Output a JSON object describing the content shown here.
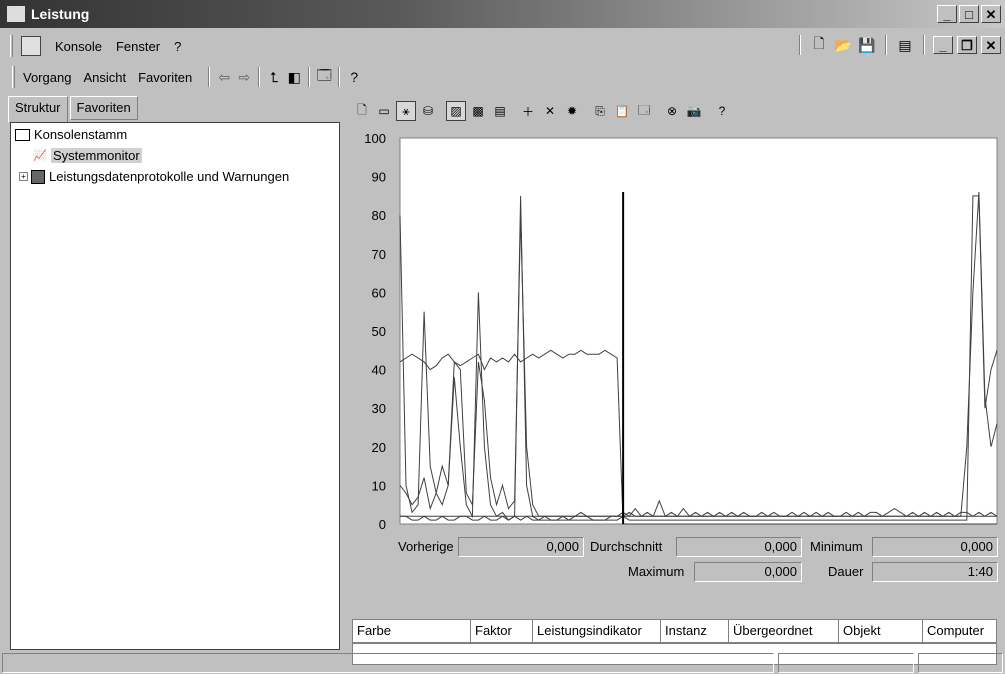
{
  "window": {
    "title": "Leistung",
    "controls": {
      "minimize": "_",
      "maximize": "□",
      "close": "✕"
    }
  },
  "menubar": {
    "items": [
      {
        "label": "Konsole"
      },
      {
        "label": "Fenster"
      },
      {
        "label": "?"
      }
    ],
    "child_controls": {
      "minimize": "_",
      "restore": "❐",
      "close": "✕"
    }
  },
  "actionbar": {
    "items": [
      {
        "label": "Vorgang"
      },
      {
        "label": "Ansicht"
      },
      {
        "label": "Favoriten"
      }
    ]
  },
  "tabs": [
    {
      "label": "Struktur",
      "active": true
    },
    {
      "label": "Favoriten",
      "active": false
    }
  ],
  "tree": {
    "root": "Konsolenstamm",
    "children": [
      {
        "label": "Systemmonitor",
        "selected": true
      },
      {
        "label": "Leistungsdatenprotokolle und Warnungen",
        "expander": "+"
      }
    ]
  },
  "chart_toolbar": {
    "icons": [
      "new-counter-set-icon",
      "clear-display-icon",
      "view-current-activity-icon",
      "view-log-data-icon",
      "view-graph-icon",
      "view-histogram-icon",
      "view-report-icon",
      "add-counter-icon",
      "delete-counter-icon",
      "highlight-icon",
      "copy-properties-icon",
      "paste-counter-list-icon",
      "properties-icon",
      "freeze-display-icon",
      "update-data-icon",
      "help-icon"
    ]
  },
  "chart_data": {
    "type": "line",
    "ylim": [
      0,
      100
    ],
    "yticks": [
      "100",
      "90",
      "80",
      "70",
      "60",
      "50",
      "40",
      "30",
      "20",
      "10",
      "0"
    ],
    "x_count": 100,
    "series": [
      {
        "values": [
          42,
          43,
          44,
          43,
          42,
          40,
          41,
          43,
          44,
          42,
          41,
          42,
          43,
          44,
          40,
          43,
          42,
          43,
          42,
          44,
          42,
          43,
          44,
          43,
          44,
          45,
          44,
          43,
          44,
          44,
          45,
          44,
          44,
          44,
          45,
          44,
          43,
          0,
          0,
          0,
          0,
          0,
          0,
          0,
          0,
          0,
          0,
          0,
          0,
          0,
          0,
          0,
          0,
          0,
          0,
          0,
          0,
          0,
          0,
          0,
          0,
          0,
          0,
          0,
          0,
          0,
          0,
          0,
          0,
          0,
          0,
          0,
          0,
          0,
          0,
          0,
          0,
          0,
          0,
          0,
          0,
          0,
          0,
          0,
          0,
          0,
          0,
          0,
          0,
          0,
          0,
          0,
          0,
          0,
          0,
          0,
          0,
          0,
          0,
          0
        ]
      },
      {
        "values": [
          80,
          10,
          3,
          5,
          55,
          15,
          8,
          5,
          10,
          38,
          20,
          5,
          2,
          60,
          20,
          5,
          2,
          3,
          1,
          2,
          85,
          10,
          2,
          1,
          1,
          1,
          1,
          1,
          1,
          1,
          1,
          1,
          1,
          1,
          1,
          1,
          1,
          2,
          1,
          1,
          1,
          1,
          1,
          1,
          1,
          1,
          1,
          1,
          1,
          1,
          1,
          1,
          1,
          1,
          1,
          1,
          1,
          1,
          1,
          1,
          1,
          1,
          1,
          1,
          1,
          1,
          1,
          1,
          1,
          1,
          1,
          1,
          1,
          1,
          1,
          1,
          1,
          1,
          1,
          1,
          1,
          1,
          1,
          1,
          1,
          1,
          1,
          1,
          1,
          1,
          1,
          1,
          1,
          1,
          1,
          85,
          85,
          30,
          40,
          45
        ]
      },
      {
        "values": [
          10,
          8,
          5,
          7,
          12,
          4,
          8,
          15,
          10,
          42,
          40,
          8,
          5,
          42,
          32,
          12,
          5,
          10,
          4,
          6,
          80,
          20,
          5,
          2,
          2,
          2,
          2,
          2,
          2,
          2,
          2,
          2,
          2,
          2,
          2,
          2,
          2,
          2,
          3,
          2,
          2,
          2,
          2,
          2,
          2,
          2,
          2,
          2,
          2,
          2,
          2,
          2,
          2,
          2,
          2,
          2,
          2,
          2,
          2,
          2,
          2,
          2,
          2,
          2,
          2,
          2,
          2,
          2,
          2,
          2,
          2,
          2,
          2,
          2,
          2,
          2,
          2,
          2,
          2,
          2,
          2,
          2,
          2,
          2,
          2,
          2,
          2,
          2,
          2,
          2,
          2,
          2,
          2,
          2,
          20,
          60,
          86,
          33,
          20,
          26
        ]
      },
      {
        "values": [
          2,
          2,
          1,
          1,
          2,
          1,
          1,
          2,
          1,
          1,
          2,
          2,
          1,
          1,
          2,
          1,
          1,
          2,
          1,
          2,
          1,
          2,
          1,
          1,
          2,
          1,
          1,
          2,
          1,
          2,
          3,
          2,
          1,
          1,
          1,
          2,
          2,
          3,
          2,
          4,
          2,
          3,
          2,
          6,
          2,
          3,
          2,
          4,
          2,
          3,
          2,
          3,
          2,
          3,
          2,
          3,
          2,
          3,
          2,
          2,
          3,
          2,
          3,
          2,
          2,
          3,
          2,
          3,
          2,
          3,
          2,
          3,
          2,
          2,
          3,
          2,
          3,
          2,
          3,
          3,
          2,
          3,
          4,
          3,
          2,
          3,
          2,
          3,
          2,
          3,
          2,
          3,
          2,
          3,
          3,
          2,
          3,
          2,
          3,
          2
        ]
      }
    ],
    "cursor_index": 37,
    "colors": {
      "line": "#404040",
      "cursor": "#000000",
      "baseline": "#404040"
    }
  },
  "stats": {
    "vorherige_label": "Vorherige",
    "vorherige_value": "0,000",
    "durchschnitt_label": "Durchschnitt",
    "durchschnitt_value": "0,000",
    "minimum_label": "Minimum",
    "minimum_value": "0,000",
    "maximum_label": "Maximum",
    "maximum_value": "0,000",
    "dauer_label": "Dauer",
    "dauer_value": "1:40"
  },
  "legend_columns": [
    "Farbe",
    "Faktor",
    "Leistungsindikator",
    "Instanz",
    "Übergeordnet",
    "Objekt",
    "Computer"
  ]
}
